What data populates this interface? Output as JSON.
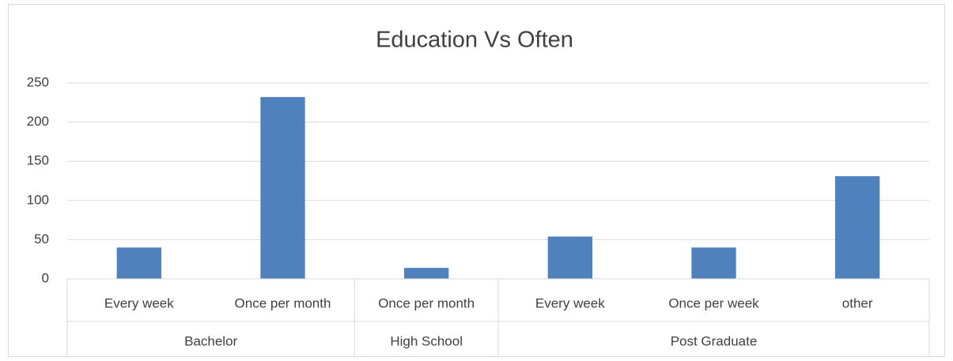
{
  "chart_data": {
    "type": "bar",
    "title": "Education Vs Often",
    "groups": [
      {
        "name": "Bachelor",
        "categories": [
          "Every week",
          "Once per month"
        ],
        "values": [
          40,
          232
        ]
      },
      {
        "name": "High School",
        "categories": [
          "Once per month"
        ],
        "values": [
          14
        ]
      },
      {
        "name": "Post Graduate",
        "categories": [
          "Every week",
          "Once per week",
          "other"
        ],
        "values": [
          54,
          40,
          131
        ]
      }
    ],
    "color": "#4f81bd",
    "ylim": [
      0,
      250
    ],
    "yticks": [
      0,
      50,
      100,
      150,
      200,
      250
    ],
    "grid": true
  }
}
